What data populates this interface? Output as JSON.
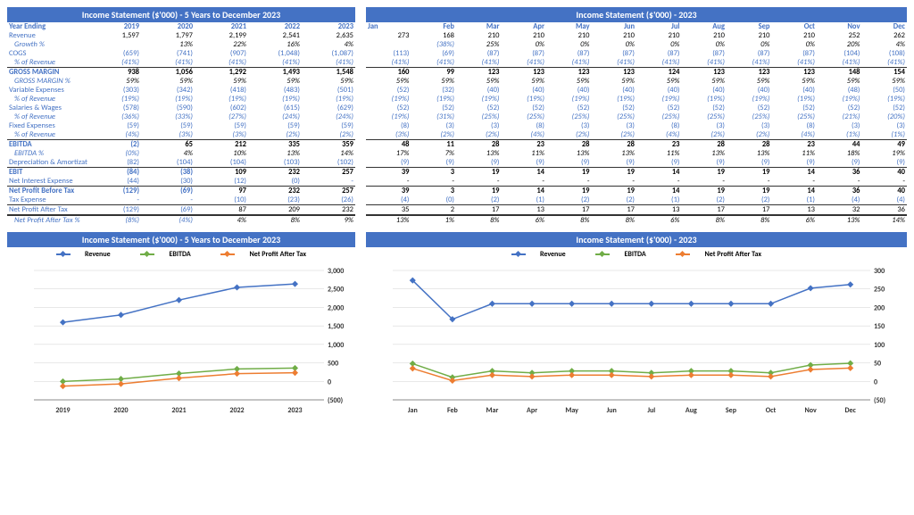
{
  "leftTable": {
    "title": "Income Statement ($'000) - 5 Years to December 2023",
    "header": [
      "Year Ending",
      "2019",
      "2020",
      "2021",
      "2022",
      "2023"
    ],
    "rows": [
      {
        "label": "Revenue",
        "vals": [
          "1,597",
          "1,797",
          "2,199",
          "2,541",
          "2,635"
        ],
        "style": ""
      },
      {
        "label": "Growth %",
        "vals": [
          "",
          "13%",
          "22%",
          "16%",
          "4%"
        ],
        "style": "italic"
      },
      {
        "label": "COGS",
        "vals": [
          "(659)",
          "(741)",
          "(907)",
          "(1,048)",
          "(1,087)"
        ],
        "style": "paren"
      },
      {
        "label": "% of Revenue",
        "vals": [
          "(41%)",
          "(41%)",
          "(41%)",
          "(41%)",
          "(41%)"
        ],
        "style": "italic paren"
      },
      {
        "label": "GROSS MARGIN",
        "vals": [
          "938",
          "1,056",
          "1,292",
          "1,493",
          "1,548"
        ],
        "style": "bold"
      },
      {
        "label": "GROSS MARGIN %",
        "vals": [
          "59%",
          "59%",
          "59%",
          "59%",
          "59%"
        ],
        "style": "italic"
      },
      {
        "label": "Variable Expenses",
        "vals": [
          "(303)",
          "(342)",
          "(418)",
          "(483)",
          "(501)"
        ],
        "style": "paren"
      },
      {
        "label": "% of Revenue",
        "vals": [
          "(19%)",
          "(19%)",
          "(19%)",
          "(19%)",
          "(19%)"
        ],
        "style": "italic paren"
      },
      {
        "label": "Salaries & Wages",
        "vals": [
          "(578)",
          "(590)",
          "(602)",
          "(615)",
          "(629)"
        ],
        "style": "paren"
      },
      {
        "label": "% of Revenue",
        "vals": [
          "(36%)",
          "(33%)",
          "(27%)",
          "(24%)",
          "(24%)"
        ],
        "style": "italic paren"
      },
      {
        "label": "Fixed Expenses",
        "vals": [
          "(59)",
          "(59)",
          "(59)",
          "(59)",
          "(59)"
        ],
        "style": "paren"
      },
      {
        "label": "% of Revenue",
        "vals": [
          "(4%)",
          "(3%)",
          "(3%)",
          "(2%)",
          "(2%)"
        ],
        "style": "italic paren"
      },
      {
        "label": "EBITDA",
        "vals": [
          "(2)",
          "65",
          "212",
          "335",
          "359"
        ],
        "style": "bold"
      },
      {
        "label": "EBITDA %",
        "vals": [
          "(0%)",
          "4%",
          "10%",
          "13%",
          "14%"
        ],
        "style": "italic"
      },
      {
        "label": "Depreciation & Amortization",
        "vals": [
          "(82)",
          "(104)",
          "(104)",
          "(103)",
          "(102)"
        ],
        "style": "paren"
      },
      {
        "label": "EBIT",
        "vals": [
          "(84)",
          "(38)",
          "109",
          "232",
          "257"
        ],
        "style": "bold"
      },
      {
        "label": "Net Interest Expense",
        "vals": [
          "(44)",
          "(30)",
          "(12)",
          "(0)",
          "-"
        ],
        "style": "paren"
      },
      {
        "label": "Net Profit Before Tax",
        "vals": [
          "(129)",
          "(69)",
          "97",
          "232",
          "257"
        ],
        "style": "bold"
      },
      {
        "label": "Tax Expense",
        "vals": [
          "-",
          "-",
          "(10)",
          "(23)",
          "(26)"
        ],
        "style": "paren"
      },
      {
        "label": "Net Profit After Tax",
        "vals": [
          "(129)",
          "(69)",
          "87",
          "209",
          "232"
        ],
        "style": "bold dbl"
      },
      {
        "label": "Net Profit After Tax %",
        "vals": [
          "(8%)",
          "(4%)",
          "4%",
          "8%",
          "9%"
        ],
        "style": "italic"
      }
    ]
  },
  "rightTable": {
    "title": "Income Statement ($'000) - 2023",
    "header": [
      "Jan",
      "Feb",
      "Mar",
      "Apr",
      "May",
      "Jun",
      "Jul",
      "Aug",
      "Sep",
      "Oct",
      "Nov",
      "Dec"
    ],
    "rows": [
      {
        "vals": [
          "273",
          "168",
          "210",
          "210",
          "210",
          "210",
          "210",
          "210",
          "210",
          "210",
          "252",
          "262"
        ],
        "style": ""
      },
      {
        "vals": [
          "",
          "(38%)",
          "25%",
          "0%",
          "0%",
          "0%",
          "0%",
          "0%",
          "0%",
          "0%",
          "20%",
          "4%"
        ],
        "style": "italic"
      },
      {
        "vals": [
          "(113)",
          "(69)",
          "(87)",
          "(87)",
          "(87)",
          "(87)",
          "(87)",
          "(87)",
          "(87)",
          "(87)",
          "(104)",
          "(108)"
        ],
        "style": "paren"
      },
      {
        "vals": [
          "(41%)",
          "(41%)",
          "(41%)",
          "(41%)",
          "(41%)",
          "(41%)",
          "(41%)",
          "(41%)",
          "(41%)",
          "(41%)",
          "(41%)",
          "(41%)"
        ],
        "style": "italic paren"
      },
      {
        "vals": [
          "160",
          "99",
          "123",
          "123",
          "123",
          "123",
          "124",
          "123",
          "123",
          "123",
          "148",
          "154"
        ],
        "style": "bold"
      },
      {
        "vals": [
          "59%",
          "59%",
          "59%",
          "59%",
          "59%",
          "59%",
          "59%",
          "59%",
          "59%",
          "59%",
          "59%",
          "59%"
        ],
        "style": "italic"
      },
      {
        "vals": [
          "(52)",
          "(32)",
          "(40)",
          "(40)",
          "(40)",
          "(40)",
          "(40)",
          "(40)",
          "(40)",
          "(40)",
          "(48)",
          "(50)"
        ],
        "style": "paren"
      },
      {
        "vals": [
          "(19%)",
          "(19%)",
          "(19%)",
          "(19%)",
          "(19%)",
          "(19%)",
          "(19%)",
          "(19%)",
          "(19%)",
          "(19%)",
          "(19%)",
          "(19%)"
        ],
        "style": "italic paren"
      },
      {
        "vals": [
          "(52)",
          "(52)",
          "(52)",
          "(52)",
          "(52)",
          "(52)",
          "(52)",
          "(52)",
          "(52)",
          "(52)",
          "(52)",
          "(52)"
        ],
        "style": "paren"
      },
      {
        "vals": [
          "(19%)",
          "(31%)",
          "(25%)",
          "(25%)",
          "(25%)",
          "(25%)",
          "(25%)",
          "(25%)",
          "(25%)",
          "(25%)",
          "(21%)",
          "(20%)"
        ],
        "style": "italic paren"
      },
      {
        "vals": [
          "(8)",
          "(3)",
          "(3)",
          "(8)",
          "(3)",
          "(3)",
          "(8)",
          "(3)",
          "(3)",
          "(8)",
          "(3)",
          "(3)"
        ],
        "style": "paren"
      },
      {
        "vals": [
          "(3%)",
          "(2%)",
          "(2%)",
          "(4%)",
          "(2%)",
          "(2%)",
          "(4%)",
          "(2%)",
          "(2%)",
          "(4%)",
          "(1%)",
          "(1%)"
        ],
        "style": "italic paren"
      },
      {
        "vals": [
          "48",
          "11",
          "28",
          "23",
          "28",
          "28",
          "23",
          "28",
          "28",
          "23",
          "44",
          "49"
        ],
        "style": "bold"
      },
      {
        "vals": [
          "17%",
          "7%",
          "13%",
          "11%",
          "13%",
          "13%",
          "11%",
          "13%",
          "13%",
          "11%",
          "18%",
          "19%"
        ],
        "style": "italic"
      },
      {
        "vals": [
          "(9)",
          "(9)",
          "(9)",
          "(9)",
          "(9)",
          "(9)",
          "(9)",
          "(9)",
          "(9)",
          "(9)",
          "(9)",
          "(9)"
        ],
        "style": "paren"
      },
      {
        "vals": [
          "39",
          "3",
          "19",
          "14",
          "19",
          "19",
          "14",
          "19",
          "19",
          "14",
          "36",
          "40"
        ],
        "style": "bold"
      },
      {
        "vals": [
          "-",
          "-",
          "-",
          "-",
          "-",
          "-",
          "-",
          "-",
          "-",
          "-",
          "-",
          "-"
        ],
        "style": ""
      },
      {
        "vals": [
          "39",
          "3",
          "19",
          "14",
          "19",
          "19",
          "14",
          "19",
          "19",
          "14",
          "36",
          "40"
        ],
        "style": "bold"
      },
      {
        "vals": [
          "(4)",
          "(0)",
          "(2)",
          "(1)",
          "(2)",
          "(2)",
          "(1)",
          "(2)",
          "(2)",
          "(1)",
          "(4)",
          "(4)"
        ],
        "style": "paren"
      },
      {
        "vals": [
          "35",
          "2",
          "17",
          "13",
          "17",
          "17",
          "13",
          "17",
          "17",
          "13",
          "32",
          "36"
        ],
        "style": "bold dbl"
      },
      {
        "vals": [
          "13%",
          "1%",
          "8%",
          "6%",
          "8%",
          "8%",
          "6%",
          "8%",
          "8%",
          "6%",
          "13%",
          "14%"
        ],
        "style": "italic"
      }
    ]
  },
  "leftChart": {
    "title": "Income Statement ($'000) - 5 Years to December 2023",
    "legend": [
      "Revenue",
      "EBITDA",
      "Net Profit After Tax"
    ],
    "categories": [
      "2019",
      "2020",
      "2021",
      "2022",
      "2023"
    ],
    "ymin": -500,
    "ymax": 3000,
    "ystep": 500,
    "series": [
      {
        "name": "Revenue",
        "color": "#4472c4",
        "vals": [
          1597,
          1797,
          2199,
          2541,
          2635
        ]
      },
      {
        "name": "EBITDA",
        "color": "#70ad47",
        "vals": [
          -2,
          65,
          212,
          335,
          359
        ]
      },
      {
        "name": "Net Profit After Tax",
        "color": "#ed7d31",
        "vals": [
          -129,
          -69,
          87,
          209,
          232
        ]
      }
    ]
  },
  "rightChart": {
    "title": "Income Statement ($'000) - 2023",
    "legend": [
      "Revenue",
      "EBITDA",
      "Net Profit After Tax"
    ],
    "categories": [
      "Jan",
      "Feb",
      "Mar",
      "Apr",
      "May",
      "Jun",
      "Jul",
      "Aug",
      "Sep",
      "Oct",
      "Nov",
      "Dec"
    ],
    "ymin": -50,
    "ymax": 300,
    "ystep": 50,
    "series": [
      {
        "name": "Revenue",
        "color": "#4472c4",
        "vals": [
          273,
          168,
          210,
          210,
          210,
          210,
          210,
          210,
          210,
          210,
          252,
          262
        ]
      },
      {
        "name": "EBITDA",
        "color": "#70ad47",
        "vals": [
          48,
          11,
          28,
          23,
          28,
          28,
          23,
          28,
          28,
          23,
          44,
          49
        ]
      },
      {
        "name": "Net Profit After Tax",
        "color": "#ed7d31",
        "vals": [
          35,
          2,
          17,
          13,
          17,
          17,
          13,
          17,
          17,
          13,
          32,
          36
        ]
      }
    ]
  }
}
